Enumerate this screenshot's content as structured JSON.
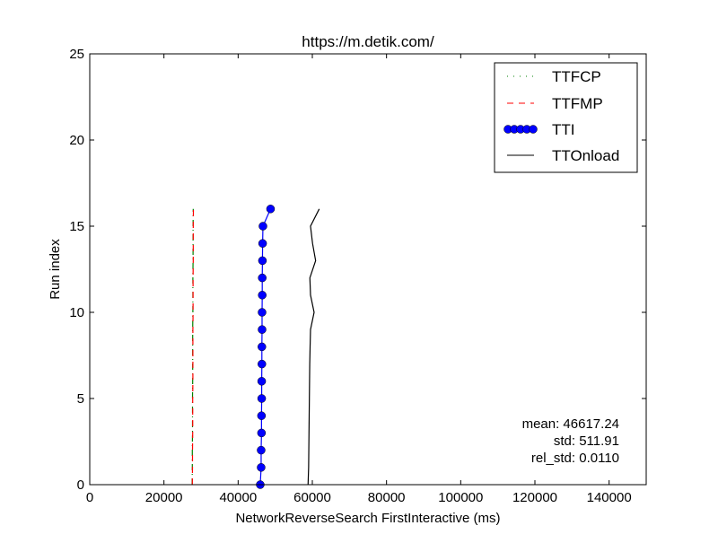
{
  "chart_data": {
    "type": "line",
    "title": "https://m.detik.com/",
    "xlabel": "NetworkReverseSearch FirstInteractive (ms)",
    "ylabel": "Run index",
    "xlim": [
      0,
      150000
    ],
    "ylim": [
      0,
      25
    ],
    "xticks": [
      "0",
      "20000",
      "40000",
      "60000",
      "80000",
      "100000",
      "120000",
      "140000"
    ],
    "xtick_values": [
      0,
      20000,
      40000,
      60000,
      80000,
      100000,
      120000,
      140000
    ],
    "yticks": [
      "0",
      "5",
      "10",
      "15",
      "20",
      "25"
    ],
    "ytick_values": [
      0,
      5,
      10,
      15,
      20,
      25
    ],
    "legend_position": "top-right",
    "y": [
      0,
      1,
      2,
      3,
      4,
      5,
      6,
      7,
      8,
      9,
      10,
      11,
      12,
      13,
      14,
      15,
      16
    ],
    "series": [
      {
        "name": "TTFCP",
        "color": "#008000",
        "style": "dashdot",
        "values": [
          27600,
          27650,
          27650,
          27700,
          27700,
          27700,
          27750,
          27750,
          27750,
          27750,
          27800,
          27800,
          27800,
          27850,
          27850,
          27850,
          27900
        ]
      },
      {
        "name": "TTFMP",
        "color": "#ff0000",
        "style": "dashed",
        "values": [
          27650,
          27700,
          27700,
          27750,
          27750,
          27750,
          27800,
          27800,
          27800,
          27800,
          27850,
          27850,
          27850,
          27900,
          27900,
          27900,
          27950
        ]
      },
      {
        "name": "TTI",
        "color": "#0000ff",
        "style": "marker",
        "values": [
          45960,
          46200,
          46200,
          46300,
          46300,
          46350,
          46350,
          46400,
          46400,
          46450,
          46450,
          46500,
          46500,
          46550,
          46600,
          46690,
          48740
        ]
      },
      {
        "name": "TTOnload",
        "color": "#000000",
        "style": "solid",
        "values": [
          58850,
          59000,
          59050,
          59100,
          59150,
          59200,
          59250,
          59300,
          59400,
          59510,
          60480,
          59510,
          59340,
          60890,
          60060,
          59510,
          61860
        ]
      }
    ],
    "annotations": [
      "mean: 46617.24",
      "std: 511.91",
      "rel_std: 0.0110"
    ]
  }
}
